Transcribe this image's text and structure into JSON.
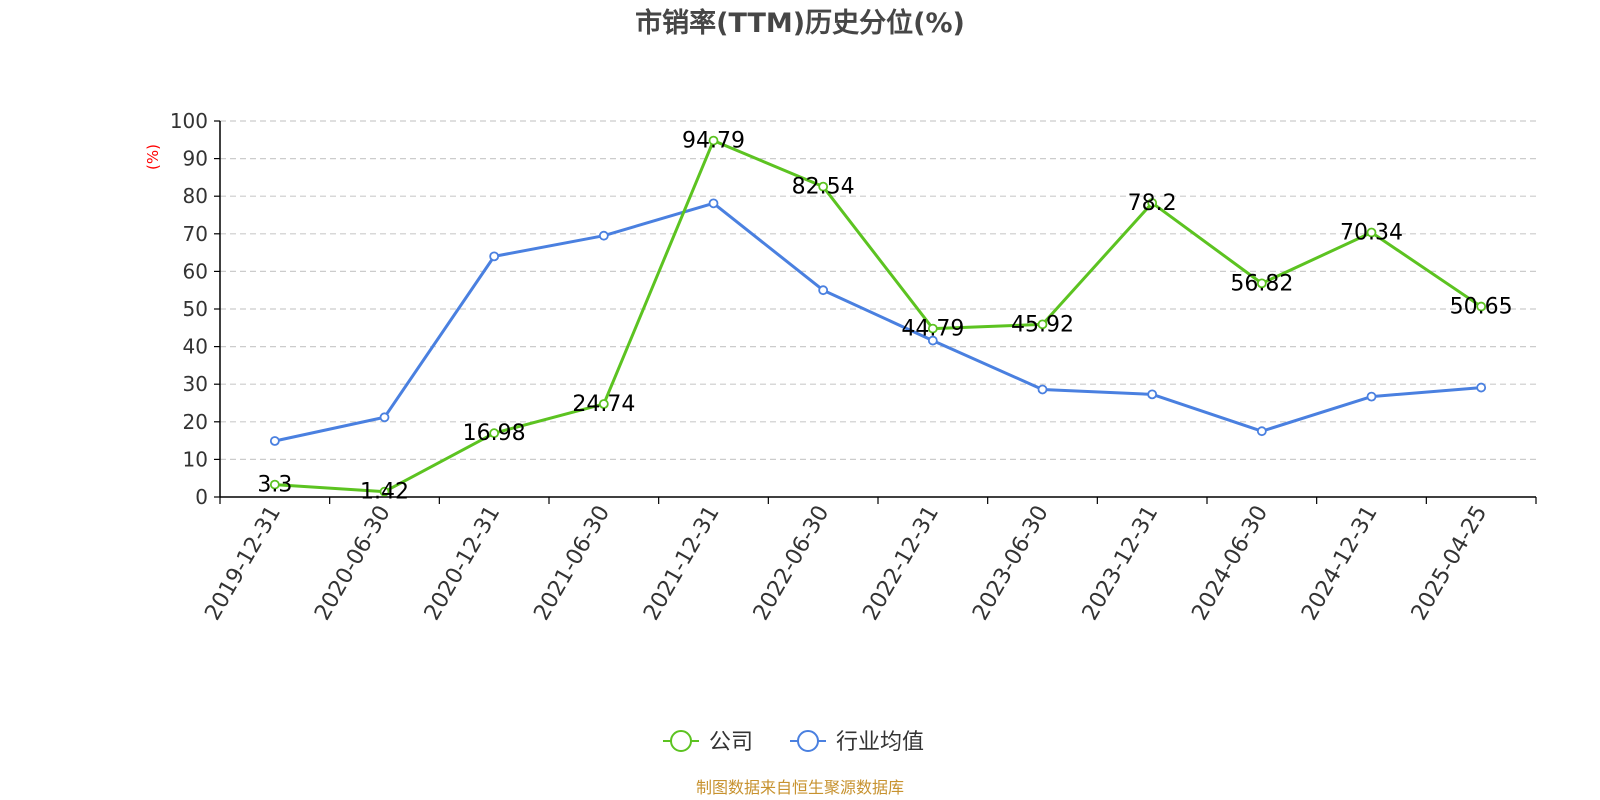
{
  "colors": {
    "company": "#5cc321",
    "industry": "#4a80e0",
    "axis": "#000000",
    "grid": "#cccccc",
    "source": "#c7922f",
    "unit": "#ff0000"
  },
  "chart_data": {
    "type": "line",
    "title": "市销率(TTM)历史分位(%)",
    "unit_label": "(%)",
    "x": [
      "2019-12-31",
      "2020-06-30",
      "2020-12-31",
      "2021-06-30",
      "2021-12-31",
      "2022-06-30",
      "2022-12-31",
      "2023-06-30",
      "2023-12-31",
      "2024-06-30",
      "2024-12-31",
      "2025-04-25"
    ],
    "ylim": [
      0,
      100
    ],
    "yticks": [
      0,
      10,
      20,
      30,
      40,
      50,
      60,
      70,
      80,
      90,
      100
    ],
    "grid": true,
    "legend_position": "bottom-center",
    "series": [
      {
        "name": "公司",
        "values": [
          3.3,
          1.42,
          16.98,
          24.74,
          94.79,
          82.54,
          44.79,
          45.92,
          78.2,
          56.82,
          70.34,
          50.65
        ],
        "data_labels": [
          "3.3",
          "1.42",
          "16.98",
          "24.74",
          "94.79",
          "82.54",
          "44.79",
          "45.92",
          "78.2",
          "56.82",
          "70.34",
          "50.65"
        ]
      },
      {
        "name": "行业均值",
        "values": [
          14.9,
          21.2,
          64.0,
          69.5,
          78.1,
          55.0,
          41.6,
          28.6,
          27.3,
          17.5,
          26.7,
          29.1
        ]
      }
    ],
    "source": "制图数据来自恒生聚源数据库"
  }
}
